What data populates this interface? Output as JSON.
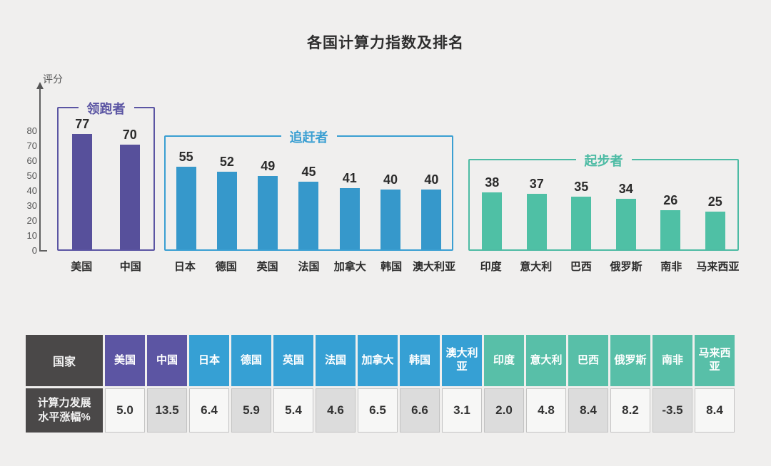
{
  "title": "各国计算力指数及排名",
  "chart_data": {
    "type": "bar",
    "title": "各国计算力指数及排名",
    "ylabel": "评分",
    "xlabel": "",
    "y_ticks": [
      80,
      70,
      60,
      50,
      40,
      30,
      20,
      10,
      0
    ],
    "ylim": [
      0,
      80
    ],
    "grid": false,
    "legend_position": "none",
    "groups": [
      {
        "label": "领跑者",
        "color": "#5b55a3",
        "bar_color": "#57509b",
        "categories": [
          "美国",
          "中国"
        ],
        "values": [
          77,
          70
        ]
      },
      {
        "label": "追赶者",
        "color": "#3a9fd2",
        "bar_color": "#3698cb",
        "categories": [
          "日本",
          "德国",
          "英国",
          "法国",
          "加拿大",
          "韩国",
          "澳大利亚"
        ],
        "values": [
          55,
          52,
          49,
          45,
          41,
          40,
          40
        ]
      },
      {
        "label": "起步者",
        "color": "#4dbba4",
        "bar_color": "#4fc0a5",
        "categories": [
          "印度",
          "意大利",
          "巴西",
          "俄罗斯",
          "南非",
          "马来西亚"
        ],
        "values": [
          38,
          37,
          35,
          34,
          26,
          25
        ]
      }
    ]
  },
  "table": {
    "corner_header": "国家",
    "row_header": "计算力发展\n水平涨幅%",
    "header_bg": "#4a4848",
    "group_colors": [
      "#5c55a3",
      "#36a0d4",
      "#58bfa8"
    ],
    "cell_bg_even": "#f7f7f6",
    "cell_bg_odd": "#dcdcdc",
    "columns": [
      {
        "country": "美国",
        "value": "5.0",
        "group": 0
      },
      {
        "country": "中国",
        "value": "13.5",
        "group": 0
      },
      {
        "country": "日本",
        "value": "6.4",
        "group": 1
      },
      {
        "country": "德国",
        "value": "5.9",
        "group": 1
      },
      {
        "country": "英国",
        "value": "5.4",
        "group": 1
      },
      {
        "country": "法国",
        "value": "4.6",
        "group": 1
      },
      {
        "country": "加拿大",
        "value": "6.5",
        "group": 1
      },
      {
        "country": "韩国",
        "value": "6.6",
        "group": 1
      },
      {
        "country": "澳大利亚",
        "value": "3.1",
        "group": 1
      },
      {
        "country": "印度",
        "value": "2.0",
        "group": 2
      },
      {
        "country": "意大利",
        "value": "4.8",
        "group": 2
      },
      {
        "country": "巴西",
        "value": "8.4",
        "group": 2
      },
      {
        "country": "俄罗斯",
        "value": "8.2",
        "group": 2
      },
      {
        "country": "南非",
        "value": "-3.5",
        "group": 2
      },
      {
        "country": "马来西亚",
        "value": "8.4",
        "group": 2
      }
    ]
  }
}
